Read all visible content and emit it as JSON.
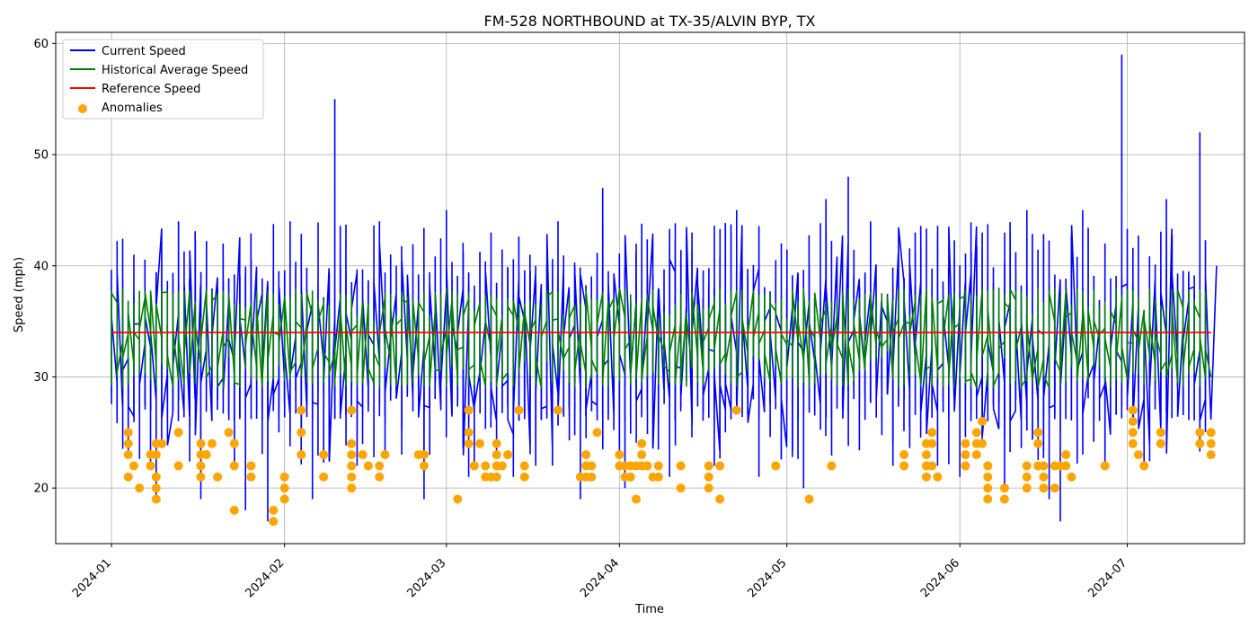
{
  "chart_data": {
    "type": "line",
    "title": "FM-528 NORTHBOUND at TX-35/ALVIN BYP, TX",
    "xlabel": "Time",
    "ylabel": "Speed (mph)",
    "x_range": [
      "2023-12-22",
      "2024-07-22"
    ],
    "ylim": [
      15,
      61
    ],
    "xticks": [
      {
        "date": "2024-01-01",
        "label": "2024-01"
      },
      {
        "date": "2024-02-01",
        "label": "2024-02"
      },
      {
        "date": "2024-03-01",
        "label": "2024-03"
      },
      {
        "date": "2024-04-01",
        "label": "2024-04"
      },
      {
        "date": "2024-05-01",
        "label": "2024-05"
      },
      {
        "date": "2024-06-01",
        "label": "2024-06"
      },
      {
        "date": "2024-07-01",
        "label": "2024-07"
      }
    ],
    "yticks": [
      20,
      30,
      40,
      50,
      60
    ],
    "grid": true,
    "legend_position": "top-left",
    "legend": [
      {
        "label": "Current Speed",
        "kind": "line",
        "color": "#0000ff"
      },
      {
        "label": "Historical Average Speed",
        "kind": "line",
        "color": "#008000"
      },
      {
        "label": "Reference Speed",
        "kind": "line",
        "color": "#ff0000"
      },
      {
        "label": "Anomalies",
        "kind": "marker",
        "color": "#ffa500"
      }
    ],
    "series": [
      {
        "name": "Current Speed",
        "color": "#0000ff",
        "description_range": [
          17,
          59
        ],
        "points": [
          [
            "2024-01-01",
            33
          ],
          [
            "2024-01-05",
            41
          ],
          [
            "2024-01-09",
            19
          ],
          [
            "2024-01-13",
            44
          ],
          [
            "2024-01-17",
            19
          ],
          [
            "2024-01-21",
            42
          ],
          [
            "2024-01-25",
            18
          ],
          [
            "2024-01-29",
            17
          ],
          [
            "2024-02-02",
            44
          ],
          [
            "2024-02-06",
            19
          ],
          [
            "2024-02-10",
            55
          ],
          [
            "2024-02-14",
            22
          ],
          [
            "2024-02-18",
            44
          ],
          [
            "2024-02-22",
            23
          ],
          [
            "2024-02-26",
            19
          ],
          [
            "2024-03-01",
            45
          ],
          [
            "2024-03-05",
            21
          ],
          [
            "2024-03-09",
            43
          ],
          [
            "2024-03-13",
            21
          ],
          [
            "2024-03-17",
            22
          ],
          [
            "2024-03-21",
            44
          ],
          [
            "2024-03-25",
            19
          ],
          [
            "2024-03-29",
            47
          ],
          [
            "2024-04-02",
            20
          ],
          [
            "2024-04-06",
            27
          ],
          [
            "2024-04-10",
            21
          ],
          [
            "2024-04-14",
            43
          ],
          [
            "2024-04-18",
            22
          ],
          [
            "2024-04-22",
            45
          ],
          [
            "2024-04-26",
            21
          ],
          [
            "2024-04-30",
            42
          ],
          [
            "2024-05-04",
            20
          ],
          [
            "2024-05-08",
            46
          ],
          [
            "2024-05-12",
            48
          ],
          [
            "2024-05-16",
            44
          ],
          [
            "2024-05-20",
            22
          ],
          [
            "2024-05-24",
            43
          ],
          [
            "2024-05-28",
            22
          ],
          [
            "2024-06-01",
            21
          ],
          [
            "2024-06-05",
            43
          ],
          [
            "2024-06-09",
            20
          ],
          [
            "2024-06-13",
            45
          ],
          [
            "2024-06-17",
            19
          ],
          [
            "2024-06-19",
            17
          ],
          [
            "2024-06-23",
            45
          ],
          [
            "2024-06-27",
            42
          ],
          [
            "2024-06-30",
            59
          ],
          [
            "2024-07-04",
            22
          ],
          [
            "2024-07-08",
            46
          ],
          [
            "2024-07-12",
            36
          ],
          [
            "2024-07-14",
            52
          ],
          [
            "2024-07-17",
            40
          ]
        ]
      },
      {
        "name": "Historical Average Speed",
        "color": "#008000",
        "description_range": [
          29,
          38
        ]
      },
      {
        "name": "Reference Speed",
        "color": "#ff0000",
        "value": 34
      },
      {
        "name": "Anomalies",
        "color": "#ffa500",
        "points": [
          [
            "2024-01-04",
            25
          ],
          [
            "2024-01-04",
            24
          ],
          [
            "2024-01-04",
            23
          ],
          [
            "2024-01-04",
            21
          ],
          [
            "2024-01-05",
            22
          ],
          [
            "2024-01-06",
            20
          ],
          [
            "2024-01-08",
            23
          ],
          [
            "2024-01-08",
            22
          ],
          [
            "2024-01-09",
            24
          ],
          [
            "2024-01-09",
            23
          ],
          [
            "2024-01-09",
            21
          ],
          [
            "2024-01-09",
            20
          ],
          [
            "2024-01-09",
            19
          ],
          [
            "2024-01-10",
            24
          ],
          [
            "2024-01-13",
            25
          ],
          [
            "2024-01-13",
            22
          ],
          [
            "2024-01-17",
            24
          ],
          [
            "2024-01-17",
            23
          ],
          [
            "2024-01-17",
            22
          ],
          [
            "2024-01-17",
            21
          ],
          [
            "2024-01-18",
            23
          ],
          [
            "2024-01-19",
            24
          ],
          [
            "2024-01-20",
            21
          ],
          [
            "2024-01-22",
            25
          ],
          [
            "2024-01-23",
            18
          ],
          [
            "2024-01-23",
            24
          ],
          [
            "2024-01-23",
            22
          ],
          [
            "2024-01-26",
            22
          ],
          [
            "2024-01-26",
            21
          ],
          [
            "2024-01-30",
            18
          ],
          [
            "2024-01-30",
            17
          ],
          [
            "2024-02-01",
            21
          ],
          [
            "2024-02-01",
            20
          ],
          [
            "2024-02-01",
            19
          ],
          [
            "2024-02-04",
            27
          ],
          [
            "2024-02-04",
            25
          ],
          [
            "2024-02-04",
            23
          ],
          [
            "2024-02-08",
            23
          ],
          [
            "2024-02-08",
            21
          ],
          [
            "2024-02-13",
            27
          ],
          [
            "2024-02-13",
            24
          ],
          [
            "2024-02-13",
            23
          ],
          [
            "2024-02-13",
            22
          ],
          [
            "2024-02-13",
            21
          ],
          [
            "2024-02-13",
            20
          ],
          [
            "2024-02-15",
            23
          ],
          [
            "2024-02-16",
            22
          ],
          [
            "2024-02-18",
            22
          ],
          [
            "2024-02-18",
            21
          ],
          [
            "2024-02-19",
            23
          ],
          [
            "2024-02-25",
            23
          ],
          [
            "2024-02-26",
            23
          ],
          [
            "2024-02-26",
            22
          ],
          [
            "2024-03-03",
            19
          ],
          [
            "2024-03-05",
            27
          ],
          [
            "2024-03-05",
            25
          ],
          [
            "2024-03-05",
            24
          ],
          [
            "2024-03-06",
            22
          ],
          [
            "2024-03-07",
            24
          ],
          [
            "2024-03-08",
            22
          ],
          [
            "2024-03-08",
            21
          ],
          [
            "2024-03-09",
            21
          ],
          [
            "2024-03-10",
            24
          ],
          [
            "2024-03-10",
            23
          ],
          [
            "2024-03-10",
            22
          ],
          [
            "2024-03-10",
            21
          ],
          [
            "2024-03-11",
            22
          ],
          [
            "2024-03-12",
            23
          ],
          [
            "2024-03-14",
            27
          ],
          [
            "2024-03-15",
            22
          ],
          [
            "2024-03-15",
            21
          ],
          [
            "2024-03-21",
            27
          ],
          [
            "2024-03-25",
            21
          ],
          [
            "2024-03-26",
            23
          ],
          [
            "2024-03-26",
            22
          ],
          [
            "2024-03-26",
            21
          ],
          [
            "2024-03-27",
            22
          ],
          [
            "2024-03-27",
            21
          ],
          [
            "2024-03-28",
            25
          ],
          [
            "2024-04-01",
            23
          ],
          [
            "2024-04-01",
            22
          ],
          [
            "2024-04-02",
            22
          ],
          [
            "2024-04-02",
            21
          ],
          [
            "2024-04-03",
            22
          ],
          [
            "2024-04-03",
            21
          ],
          [
            "2024-04-04",
            22
          ],
          [
            "2024-04-04",
            19
          ],
          [
            "2024-04-05",
            24
          ],
          [
            "2024-04-05",
            23
          ],
          [
            "2024-04-05",
            22
          ],
          [
            "2024-04-06",
            22
          ],
          [
            "2024-04-07",
            21
          ],
          [
            "2024-04-08",
            22
          ],
          [
            "2024-04-08",
            21
          ],
          [
            "2024-04-12",
            22
          ],
          [
            "2024-04-12",
            20
          ],
          [
            "2024-04-17",
            22
          ],
          [
            "2024-04-17",
            21
          ],
          [
            "2024-04-17",
            20
          ],
          [
            "2024-04-19",
            22
          ],
          [
            "2024-04-19",
            19
          ],
          [
            "2024-04-22",
            27
          ],
          [
            "2024-04-29",
            22
          ],
          [
            "2024-05-05",
            19
          ],
          [
            "2024-05-09",
            22
          ],
          [
            "2024-05-22",
            23
          ],
          [
            "2024-05-22",
            22
          ],
          [
            "2024-05-26",
            24
          ],
          [
            "2024-05-26",
            23
          ],
          [
            "2024-05-26",
            22
          ],
          [
            "2024-05-26",
            21
          ],
          [
            "2024-05-27",
            25
          ],
          [
            "2024-05-27",
            24
          ],
          [
            "2024-05-27",
            22
          ],
          [
            "2024-05-28",
            21
          ],
          [
            "2024-06-02",
            24
          ],
          [
            "2024-06-02",
            23
          ],
          [
            "2024-06-02",
            22
          ],
          [
            "2024-06-04",
            25
          ],
          [
            "2024-06-04",
            24
          ],
          [
            "2024-06-04",
            23
          ],
          [
            "2024-06-05",
            26
          ],
          [
            "2024-06-05",
            24
          ],
          [
            "2024-06-06",
            22
          ],
          [
            "2024-06-06",
            21
          ],
          [
            "2024-06-06",
            20
          ],
          [
            "2024-06-06",
            19
          ],
          [
            "2024-06-09",
            20
          ],
          [
            "2024-06-09",
            19
          ],
          [
            "2024-06-13",
            22
          ],
          [
            "2024-06-13",
            21
          ],
          [
            "2024-06-13",
            20
          ],
          [
            "2024-06-15",
            25
          ],
          [
            "2024-06-15",
            24
          ],
          [
            "2024-06-15",
            22
          ],
          [
            "2024-06-16",
            22
          ],
          [
            "2024-06-16",
            21
          ],
          [
            "2024-06-16",
            20
          ],
          [
            "2024-06-18",
            22
          ],
          [
            "2024-06-18",
            20
          ],
          [
            "2024-06-19",
            22
          ],
          [
            "2024-06-20",
            23
          ],
          [
            "2024-06-20",
            22
          ],
          [
            "2024-06-21",
            21
          ],
          [
            "2024-06-27",
            22
          ],
          [
            "2024-07-02",
            27
          ],
          [
            "2024-07-02",
            26
          ],
          [
            "2024-07-02",
            25
          ],
          [
            "2024-07-02",
            24
          ],
          [
            "2024-07-03",
            23
          ],
          [
            "2024-07-04",
            22
          ],
          [
            "2024-07-07",
            25
          ],
          [
            "2024-07-07",
            24
          ],
          [
            "2024-07-14",
            25
          ],
          [
            "2024-07-14",
            24
          ],
          [
            "2024-07-16",
            25
          ],
          [
            "2024-07-16",
            24
          ],
          [
            "2024-07-16",
            23
          ]
        ]
      }
    ]
  }
}
